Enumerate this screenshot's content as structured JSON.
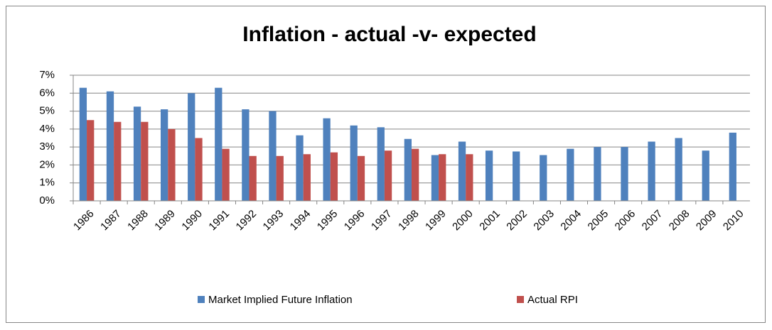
{
  "chart_data": {
    "type": "bar",
    "title": "Inflation - actual -v- expected",
    "categories": [
      "1986",
      "1987",
      "1988",
      "1989",
      "1990",
      "1991",
      "1992",
      "1993",
      "1994",
      "1995",
      "1996",
      "1997",
      "1998",
      "1999",
      "2000",
      "2001",
      "2002",
      "2003",
      "2004",
      "2005",
      "2006",
      "2007",
      "2008",
      "2009",
      "2010"
    ],
    "series": [
      {
        "name": "Market Implied Future Inflation",
        "color": "#4f81bd",
        "values": [
          6.3,
          6.1,
          5.25,
          5.1,
          6.0,
          6.3,
          5.1,
          5.0,
          3.65,
          4.6,
          4.2,
          4.1,
          3.45,
          2.55,
          3.3,
          2.8,
          2.75,
          2.55,
          2.9,
          3.0,
          3.0,
          3.3,
          3.5,
          2.8,
          3.8
        ]
      },
      {
        "name": "Actual RPI",
        "color": "#c0504d",
        "values": [
          4.5,
          4.4,
          4.4,
          4.0,
          3.5,
          2.9,
          2.5,
          2.5,
          2.6,
          2.7,
          2.5,
          2.8,
          2.9,
          2.6,
          2.6,
          null,
          null,
          null,
          null,
          null,
          null,
          null,
          null,
          null,
          null
        ]
      }
    ],
    "ylim": [
      0,
      7
    ],
    "yticks": [
      {
        "value": 0,
        "label": "0%"
      },
      {
        "value": 1,
        "label": "1%"
      },
      {
        "value": 2,
        "label": "2%"
      },
      {
        "value": 3,
        "label": "3%"
      },
      {
        "value": 4,
        "label": "4%"
      },
      {
        "value": 5,
        "label": "5%"
      },
      {
        "value": 6,
        "label": "6%"
      },
      {
        "value": 7,
        "label": "7%"
      }
    ],
    "grid": true,
    "legend": "bottom"
  }
}
